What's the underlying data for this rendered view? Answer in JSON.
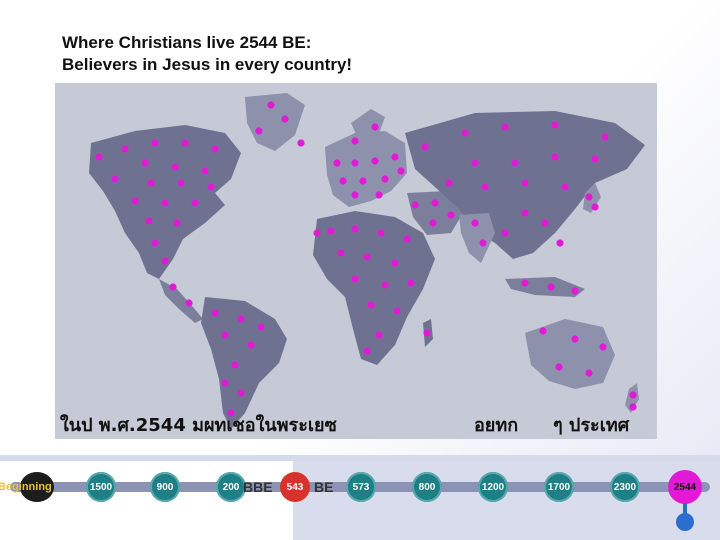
{
  "title": {
    "line1": "Where Christians live 2544 BE:",
    "line2": "Believers in Jesus in every country!"
  },
  "caption": {
    "part1": "ในป  พ.ศ.2544  มผทเชอในพระเยซ",
    "part2": "อยทก",
    "part3": "ๆ  ประเทศ"
  },
  "timeline": {
    "nodes": [
      {
        "label": "Beginning",
        "style": "begin"
      },
      {
        "label": "1500",
        "style": "normal"
      },
      {
        "label": "900",
        "style": "normal"
      },
      {
        "label": "200",
        "style": "normal"
      },
      {
        "label": "543",
        "style": "red"
      },
      {
        "label": "573",
        "style": "normal"
      },
      {
        "label": "800",
        "style": "normal"
      },
      {
        "label": "1200",
        "style": "normal"
      },
      {
        "label": "1700",
        "style": "normal"
      },
      {
        "label": "2300",
        "style": "normal"
      },
      {
        "label": "2544",
        "style": "current"
      }
    ],
    "era_bbe": "BBE",
    "era_be": "BE"
  },
  "colors": {
    "ocean": "#c6cad6",
    "land": "#6e7290",
    "land_light": "#8d91ab",
    "dot": "#e21ad6",
    "node": "#1e7f86",
    "node_red": "#d8322c",
    "track": "#8d93b4"
  }
}
